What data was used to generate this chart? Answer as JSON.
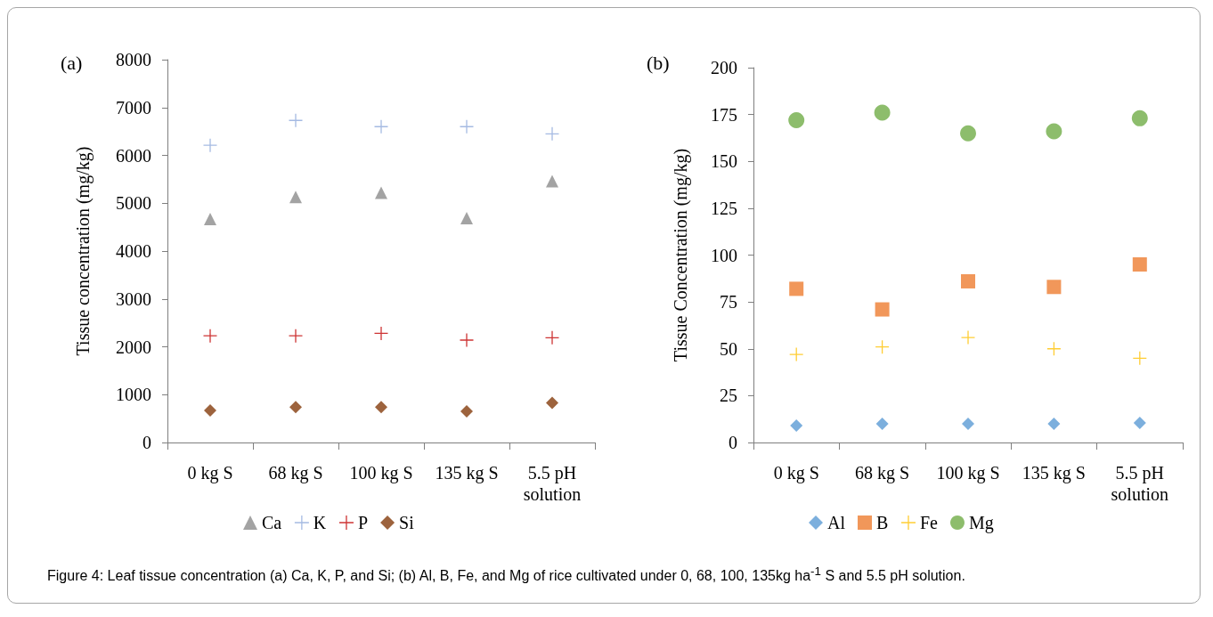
{
  "chart_data": [
    {
      "type": "scatter",
      "title": "(a)",
      "ylabel": "Tissue concentration (mg/kg)",
      "categories": [
        "0 kg S",
        "68 kg S",
        "100 kg S",
        "135 kg S",
        "5.5 pH\nsolution"
      ],
      "series": [
        {
          "name": "Ca",
          "color": "#8c8c8c",
          "marker": "triangle",
          "values": [
            4670,
            5130,
            5220,
            4690,
            5460
          ]
        },
        {
          "name": "K",
          "color": "#8ea9db",
          "marker": "cross",
          "values": [
            6210,
            6730,
            6600,
            6600,
            6450
          ]
        },
        {
          "name": "P",
          "color": "#c00000",
          "marker": "cross",
          "values": [
            2230,
            2230,
            2280,
            2140,
            2190
          ]
        },
        {
          "name": "Si",
          "color": "#843c0c",
          "marker": "diamond",
          "values": [
            670,
            740,
            740,
            650,
            830
          ]
        }
      ],
      "ylim": [
        0,
        8000
      ],
      "yticks": [
        0,
        1000,
        2000,
        3000,
        4000,
        5000,
        6000,
        7000,
        8000
      ],
      "grid": false,
      "legend": "bottom",
      "annotations": [
        "Figure 4: Leaf tissue concentration (a) Ca, K, P, and Si; (b) Al, B, Fe, and Mg of rice cultivated under 0, 68, 100, 135kg ha$^{-1}$ S and 5.5 pH solution."
      ]
    },
    {
      "type": "scatter",
      "title": "(b)",
      "ylabel": "Tissue Concentration (mg/kg)",
      "categories": [
        "0 kg S",
        "68 kg S",
        "100 kg S",
        "135 kg S",
        "5.5 pH\nsolution"
      ],
      "series": [
        {
          "name": "Al",
          "color": "#5b9bd5",
          "marker": "diamond",
          "values": [
            9,
            10,
            10,
            10,
            10.5
          ]
        },
        {
          "name": "B",
          "color": "#ed7d31",
          "marker": "square",
          "values": [
            82,
            71,
            86,
            83,
            95
          ]
        },
        {
          "name": "Fe",
          "color": "#ffc000",
          "marker": "cross",
          "values": [
            47,
            51,
            56,
            50,
            45
          ]
        },
        {
          "name": "Mg",
          "color": "#70ad47",
          "marker": "circle",
          "values": [
            172,
            176,
            165,
            166,
            173
          ]
        }
      ],
      "ylim": [
        0,
        200
      ],
      "yticks": [
        0,
        25,
        50,
        75,
        100,
        125,
        150,
        175,
        200
      ],
      "grid": false,
      "legend": "bottom"
    }
  ]
}
